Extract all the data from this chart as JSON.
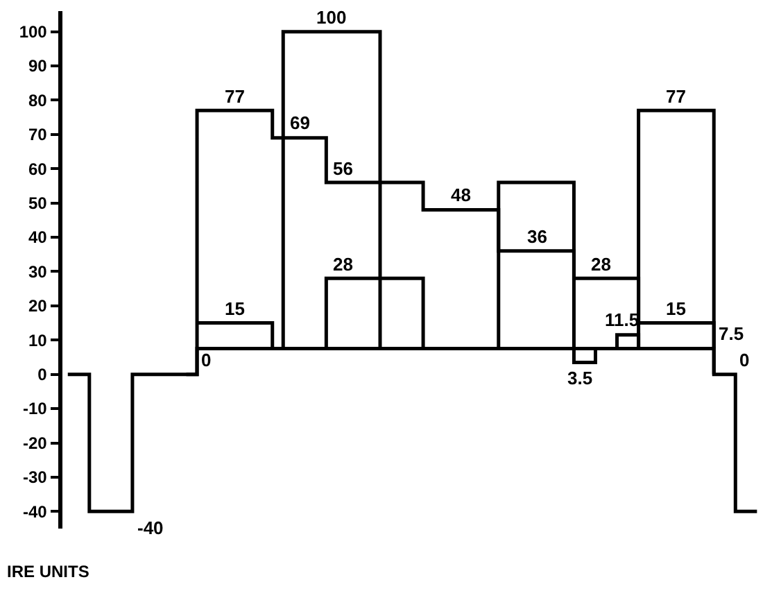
{
  "chart_data": {
    "type": "step",
    "ylabel": "IRE UNITS",
    "ylim": [
      -45,
      106
    ],
    "yticks": [
      -40,
      -30,
      -20,
      -10,
      0,
      10,
      20,
      30,
      40,
      50,
      60,
      70,
      80,
      90,
      100
    ],
    "grid": false,
    "legend": false,
    "tick_labels": "y",
    "categories": [
      null,
      null,
      null,
      null,
      null,
      null,
      null,
      null,
      null,
      null,
      null,
      null,
      null,
      null,
      null,
      null,
      null,
      null,
      null,
      null,
      null,
      null,
      null,
      null,
      null,
      null,
      null,
      null,
      null,
      null,
      null,
      null,
      null,
      null,
      null,
      null,
      null,
      null,
      null,
      null,
      null,
      null,
      null,
      null,
      null,
      null,
      null,
      null,
      null,
      null,
      null,
      null,
      null,
      null,
      null,
      null,
      null,
      null,
      null,
      null,
      null,
      null,
      null,
      null,
      null
    ],
    "series": [
      {
        "color": "#000000",
        "values": [
          0,
          0,
          -40,
          -40,
          -40,
          -40,
          0,
          0,
          0,
          0,
          0,
          0,
          7.5,
          7.5,
          7.5,
          7.5,
          7.5,
          7.5,
          7.5,
          7.5,
          7.5,
          7.5,
          7.5,
          7.5,
          7.5,
          7.5,
          7.5,
          7.5,
          7.5,
          7.5,
          7.5,
          7.5,
          7.5,
          7.5,
          7.5,
          7.5,
          7.5,
          7.5,
          7.5,
          7.5,
          7.5,
          7.5,
          7.5,
          7.5,
          7.5,
          7.5,
          7.5,
          7.5,
          7.5,
          7.5,
          7.5,
          7.5,
          7.5,
          7.5,
          7.5,
          7.5,
          7.5,
          7.5,
          7.5,
          7.5,
          0,
          0,
          -40,
          -40,
          -40
        ],
        "value_labels": [
          null,
          null,
          null,
          null,
          null,
          "-40",
          null,
          null,
          null,
          null,
          null,
          null,
          null,
          null,
          null,
          null,
          null,
          null,
          null,
          null,
          null,
          null,
          null,
          null,
          null,
          null,
          null,
          null,
          null,
          null,
          null,
          null,
          null,
          null,
          null,
          null,
          null,
          null,
          null,
          null,
          null,
          null,
          null,
          null,
          null,
          null,
          null,
          null,
          null,
          null,
          null,
          null,
          null,
          null,
          null,
          null,
          null,
          null,
          null,
          "7.5",
          null,
          "0",
          null,
          null,
          null
        ]
      },
      {
        "color": "#000000",
        "values": [
          null,
          null,
          null,
          null,
          null,
          null,
          null,
          null,
          null,
          null,
          null,
          0,
          77,
          77,
          77,
          77,
          77,
          77,
          77,
          69,
          69,
          69,
          69,
          69,
          56,
          56,
          56,
          56,
          56,
          56,
          56,
          56,
          56,
          48,
          48,
          48,
          48,
          48,
          48,
          48,
          36,
          36,
          36,
          36,
          36,
          36,
          36,
          28,
          28,
          28,
          28,
          28,
          28,
          15,
          15,
          15,
          15,
          15,
          15,
          15,
          0,
          null,
          null,
          null,
          null
        ],
        "value_labels": [
          null,
          null,
          null,
          null,
          null,
          null,
          null,
          null,
          null,
          null,
          null,
          "0",
          null,
          null,
          null,
          "77",
          null,
          null,
          null,
          null,
          null,
          "69",
          null,
          null,
          null,
          "56",
          null,
          null,
          null,
          null,
          null,
          null,
          null,
          null,
          null,
          null,
          "48",
          null,
          null,
          null,
          null,
          null,
          null,
          "36",
          null,
          null,
          null,
          null,
          null,
          "28",
          null,
          null,
          null,
          null,
          null,
          null,
          "15",
          null,
          null,
          null,
          null,
          null,
          null,
          null,
          null
        ]
      },
      {
        "color": "#000000",
        "values": [
          null,
          null,
          null,
          null,
          null,
          null,
          null,
          null,
          null,
          null,
          null,
          null,
          15,
          15,
          15,
          15,
          15,
          15,
          15,
          7.5,
          null,
          null,
          null,
          null,
          null,
          null,
          null,
          null,
          null,
          null,
          null,
          null,
          null,
          null,
          null,
          null,
          null,
          null,
          null,
          null,
          null,
          null,
          null,
          null,
          null,
          null,
          null,
          null,
          null,
          null,
          null,
          null,
          null,
          null,
          null,
          null,
          null,
          null,
          null,
          null,
          null,
          null,
          null,
          null,
          null
        ],
        "value_labels": [
          null,
          null,
          null,
          null,
          null,
          null,
          null,
          null,
          null,
          null,
          null,
          null,
          null,
          null,
          null,
          "15",
          null,
          null,
          null,
          null,
          null,
          null,
          null,
          null,
          null,
          null,
          null,
          null,
          null,
          null,
          null,
          null,
          null,
          null,
          null,
          null,
          null,
          null,
          null,
          null,
          null,
          null,
          null,
          null,
          null,
          null,
          null,
          null,
          null,
          null,
          null,
          null,
          null,
          null,
          null,
          null,
          null,
          null,
          null,
          null,
          null,
          null,
          null,
          null,
          null
        ]
      },
      {
        "color": "#000000",
        "values": [
          null,
          null,
          null,
          null,
          null,
          null,
          null,
          null,
          null,
          null,
          null,
          null,
          null,
          null,
          null,
          null,
          null,
          null,
          null,
          7.5,
          100,
          100,
          100,
          100,
          100,
          100,
          100,
          100,
          100,
          7.5,
          null,
          null,
          null,
          null,
          null,
          null,
          null,
          null,
          null,
          null,
          null,
          null,
          null,
          null,
          null,
          null,
          null,
          null,
          null,
          null,
          null,
          null,
          null,
          null,
          null,
          null,
          null,
          null,
          null,
          null,
          null,
          null,
          null,
          null,
          null
        ],
        "value_labels": [
          null,
          null,
          null,
          null,
          null,
          null,
          null,
          null,
          null,
          null,
          null,
          null,
          null,
          null,
          null,
          null,
          null,
          null,
          null,
          null,
          null,
          null,
          null,
          null,
          "100",
          null,
          null,
          null,
          null,
          null,
          null,
          null,
          null,
          null,
          null,
          null,
          null,
          null,
          null,
          null,
          null,
          null,
          null,
          null,
          null,
          null,
          null,
          null,
          null,
          null,
          null,
          null,
          null,
          null,
          null,
          null,
          null,
          null,
          null,
          null,
          null,
          null,
          null,
          null,
          null
        ]
      },
      {
        "color": "#000000",
        "values": [
          null,
          null,
          null,
          null,
          null,
          null,
          null,
          null,
          null,
          null,
          null,
          null,
          null,
          null,
          null,
          null,
          null,
          null,
          null,
          null,
          null,
          null,
          null,
          7.5,
          28,
          28,
          28,
          28,
          28,
          28,
          28,
          28,
          28,
          7.5,
          null,
          null,
          null,
          null,
          null,
          null,
          null,
          null,
          null,
          null,
          null,
          null,
          null,
          null,
          null,
          null,
          null,
          null,
          null,
          null,
          null,
          null,
          null,
          null,
          null,
          null,
          null,
          null,
          null,
          null,
          null
        ],
        "value_labels": [
          null,
          null,
          null,
          null,
          null,
          null,
          null,
          null,
          null,
          null,
          null,
          null,
          null,
          null,
          null,
          null,
          null,
          null,
          null,
          null,
          null,
          null,
          null,
          null,
          null,
          "28",
          null,
          null,
          null,
          null,
          null,
          null,
          null,
          null,
          null,
          null,
          null,
          null,
          null,
          null,
          null,
          null,
          null,
          null,
          null,
          null,
          null,
          null,
          null,
          null,
          null,
          null,
          null,
          null,
          null,
          null,
          null,
          null,
          null,
          null,
          null,
          null,
          null,
          null,
          null
        ]
      },
      {
        "color": "#000000",
        "values": [
          null,
          null,
          null,
          null,
          null,
          null,
          null,
          null,
          null,
          null,
          null,
          null,
          null,
          null,
          null,
          null,
          null,
          null,
          null,
          null,
          null,
          null,
          null,
          null,
          null,
          null,
          null,
          null,
          null,
          null,
          null,
          null,
          null,
          null,
          null,
          null,
          null,
          null,
          null,
          7.5,
          56,
          56,
          56,
          56,
          56,
          56,
          56,
          7.5,
          null,
          null,
          null,
          null,
          null,
          null,
          null,
          null,
          null,
          null,
          null,
          null,
          null,
          null,
          null,
          null,
          null
        ]
      },
      {
        "color": "#000000",
        "values": [
          null,
          null,
          null,
          null,
          null,
          null,
          null,
          null,
          null,
          null,
          null,
          null,
          null,
          null,
          null,
          null,
          null,
          null,
          null,
          null,
          null,
          null,
          null,
          null,
          null,
          null,
          null,
          null,
          null,
          null,
          null,
          null,
          null,
          null,
          null,
          null,
          null,
          null,
          null,
          null,
          null,
          null,
          null,
          null,
          null,
          null,
          7.5,
          3.5,
          3.5,
          7.5,
          null,
          null,
          null,
          null,
          null,
          null,
          null,
          null,
          null,
          null,
          null,
          null,
          null,
          null,
          null
        ],
        "value_labels": [
          null,
          null,
          null,
          null,
          null,
          null,
          null,
          null,
          null,
          null,
          null,
          null,
          null,
          null,
          null,
          null,
          null,
          null,
          null,
          null,
          null,
          null,
          null,
          null,
          null,
          null,
          null,
          null,
          null,
          null,
          null,
          null,
          null,
          null,
          null,
          null,
          null,
          null,
          null,
          null,
          null,
          null,
          null,
          null,
          null,
          null,
          null,
          "3.5",
          null,
          null,
          null,
          null,
          null,
          null,
          null,
          null,
          null,
          null,
          null,
          null,
          null,
          null,
          null,
          null,
          null
        ]
      },
      {
        "color": "#000000",
        "values": [
          null,
          null,
          null,
          null,
          null,
          null,
          null,
          null,
          null,
          null,
          null,
          null,
          null,
          null,
          null,
          null,
          null,
          null,
          null,
          null,
          null,
          null,
          null,
          null,
          null,
          null,
          null,
          null,
          null,
          null,
          null,
          null,
          null,
          null,
          null,
          null,
          null,
          null,
          null,
          null,
          null,
          null,
          null,
          null,
          null,
          null,
          null,
          null,
          null,
          null,
          7.5,
          11.5,
          11.5,
          7.5,
          null,
          null,
          null,
          null,
          null,
          null,
          null,
          null,
          null,
          null,
          null
        ],
        "value_labels": [
          null,
          null,
          null,
          null,
          null,
          null,
          null,
          null,
          null,
          null,
          null,
          null,
          null,
          null,
          null,
          null,
          null,
          null,
          null,
          null,
          null,
          null,
          null,
          null,
          null,
          null,
          null,
          null,
          null,
          null,
          null,
          null,
          null,
          null,
          null,
          null,
          null,
          null,
          null,
          null,
          null,
          null,
          null,
          null,
          null,
          null,
          null,
          null,
          null,
          null,
          null,
          "11.5",
          null,
          null,
          null,
          null,
          null,
          null,
          null,
          null,
          null,
          null,
          null,
          null,
          null
        ]
      },
      {
        "color": "#000000",
        "values": [
          null,
          null,
          null,
          null,
          null,
          null,
          null,
          null,
          null,
          null,
          null,
          null,
          null,
          null,
          null,
          null,
          null,
          null,
          null,
          null,
          null,
          null,
          null,
          null,
          null,
          null,
          null,
          null,
          null,
          null,
          null,
          null,
          null,
          null,
          null,
          null,
          null,
          null,
          null,
          null,
          null,
          null,
          null,
          null,
          null,
          null,
          null,
          null,
          null,
          null,
          null,
          null,
          7.5,
          77,
          77,
          77,
          77,
          77,
          77,
          77,
          7.5,
          null,
          null,
          null,
          null
        ],
        "value_labels": [
          null,
          null,
          null,
          null,
          null,
          null,
          null,
          null,
          null,
          null,
          null,
          null,
          null,
          null,
          null,
          null,
          null,
          null,
          null,
          null,
          null,
          null,
          null,
          null,
          null,
          null,
          null,
          null,
          null,
          null,
          null,
          null,
          null,
          null,
          null,
          null,
          null,
          null,
          null,
          null,
          null,
          null,
          null,
          null,
          null,
          null,
          null,
          null,
          null,
          null,
          null,
          null,
          null,
          null,
          null,
          null,
          "77",
          null,
          null,
          null,
          null,
          null,
          null,
          null,
          null
        ]
      }
    ]
  }
}
